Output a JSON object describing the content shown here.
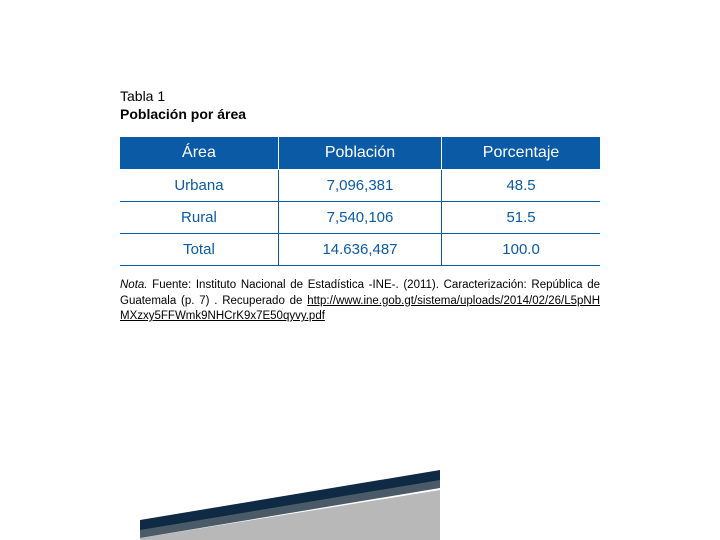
{
  "caption": {
    "number": "Tabla 1",
    "title": "Población por área"
  },
  "table": {
    "type": "table",
    "header_bg": "#0a5aa6",
    "header_text_color": "#ffffff",
    "body_text_color": "#0a5aa6",
    "border_color": "#0a5aa6",
    "columns": [
      "Área",
      "Población",
      "Porcentaje"
    ],
    "rows": [
      [
        "Urbana",
        "7,096,381",
        "48.5"
      ],
      [
        "Rural",
        "7,540,106",
        "51.5"
      ],
      [
        "Total",
        "14.636,487",
        "100.0"
      ]
    ],
    "col_widths": [
      "33%",
      "34%",
      "33%"
    ],
    "header_fontsize": 16,
    "body_fontsize": 15
  },
  "note": {
    "label": "Nota.",
    "text_before_link": " Fuente: Instituto Nacional de Estadística -INE-. (2011). Caracterización: República de Guatemala (p. 7) . Recuperado de ",
    "link_text": "http://www.ine.gob.gt/sistema/uploads/2014/02/26/L5pNHMXzxy5FFWmk9NHCrK9x7E50qyvy.pdf",
    "link_href": "http://www.ine.gob.gt/sistema/uploads/2014/02/26/L5pNHMXzxy5FFWmk9NHCrK9x7E50qyvy.pdf"
  },
  "decoration": {
    "line1_color": "#0f2a44",
    "line2_color": "#4a5a66",
    "shadow_color": "#b8b8b8"
  }
}
